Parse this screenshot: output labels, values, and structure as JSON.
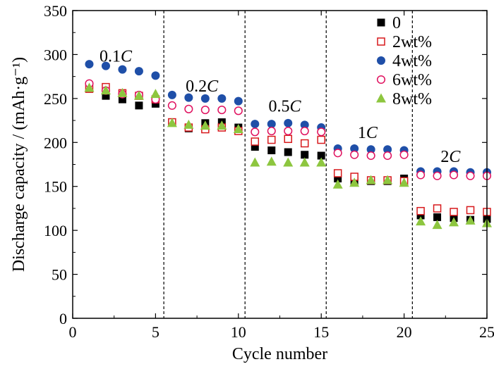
{
  "chart_data": {
    "type": "scatter",
    "title": "",
    "xlabel": "Cycle number",
    "ylabel": "Discharge capacity / (mAh·g⁻¹)",
    "xlim": [
      0,
      25
    ],
    "ylim": [
      0,
      350
    ],
    "xticks": [
      "0",
      "5",
      "10",
      "15",
      "20",
      "25"
    ],
    "yticks": [
      "0",
      "50",
      "100",
      "150",
      "200",
      "250",
      "300",
      "350"
    ],
    "grid": false,
    "legend_position": "top-right",
    "rate_separators": [
      5.5,
      10.4,
      15.3,
      20.5
    ],
    "rate_labels": [
      {
        "text": "0.1C",
        "x": 2.6,
        "y": 292
      },
      {
        "text": "0.2C",
        "x": 7.8,
        "y": 258
      },
      {
        "text": "0.5C",
        "x": 12.8,
        "y": 235
      },
      {
        "text": "1C",
        "x": 17.8,
        "y": 205
      },
      {
        "text": "2C",
        "x": 22.8,
        "y": 178
      }
    ],
    "x": [
      1,
      2,
      3,
      4,
      5,
      6,
      7,
      8,
      9,
      10,
      11,
      12,
      13,
      14,
      15,
      16,
      17,
      18,
      19,
      20,
      21,
      22,
      23,
      24,
      25
    ],
    "series": [
      {
        "name": "0",
        "marker": "square-filled",
        "color": "#000000",
        "values": [
          261,
          253,
          249,
          242,
          244,
          223,
          216,
          222,
          223,
          217,
          195,
          191,
          189,
          186,
          185,
          159,
          156,
          156,
          156,
          159,
          117,
          115,
          114,
          112,
          113
        ]
      },
      {
        "name": "2wt%",
        "marker": "square-open",
        "color": "#d7191c",
        "values": [
          261,
          263,
          256,
          253,
          249,
          223,
          217,
          215,
          217,
          213,
          201,
          203,
          204,
          199,
          203,
          165,
          161,
          157,
          157,
          156,
          122,
          125,
          121,
          123,
          121
        ]
      },
      {
        "name": "4wt%",
        "marker": "circle-filled",
        "color": "#1f4fa8",
        "values": [
          289,
          287,
          283,
          281,
          276,
          254,
          251,
          250,
          250,
          247,
          221,
          221,
          222,
          220,
          217,
          193,
          193,
          192,
          192,
          191,
          167,
          167,
          167,
          166,
          166
        ]
      },
      {
        "name": "6wt%",
        "marker": "circle-open",
        "color": "#e0115f",
        "values": [
          267,
          259,
          255,
          254,
          249,
          242,
          238,
          237,
          237,
          236,
          212,
          213,
          213,
          213,
          212,
          188,
          186,
          185,
          185,
          186,
          163,
          162,
          163,
          162,
          162
        ]
      },
      {
        "name": "8wt%",
        "marker": "triangle-filled",
        "color": "#8dc63f",
        "values": [
          262,
          259,
          256,
          253,
          255,
          222,
          220,
          219,
          219,
          215,
          177,
          178,
          177,
          177,
          177,
          152,
          154,
          157,
          157,
          154,
          110,
          106,
          109,
          111,
          108
        ]
      }
    ]
  }
}
